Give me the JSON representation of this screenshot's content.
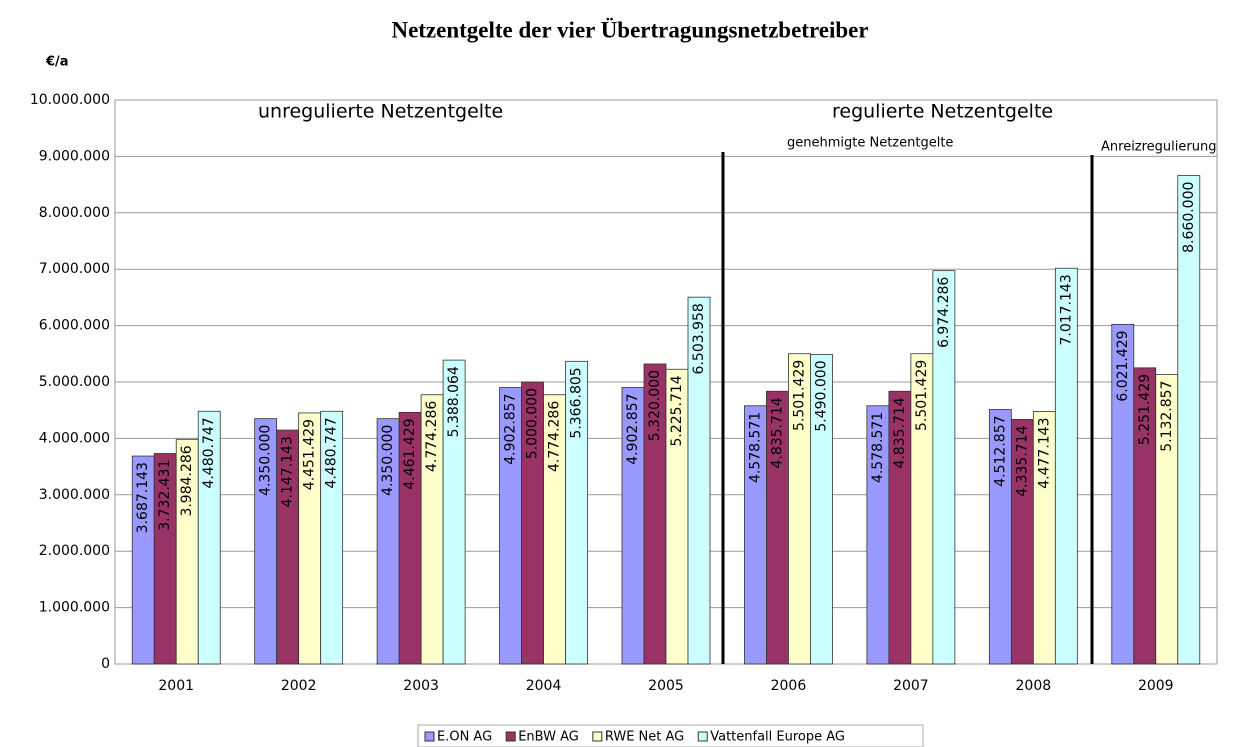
{
  "chart_data": {
    "type": "bar",
    "title": "Netzentgelte der vier Übertragungsnetzbetreiber",
    "y_label": "€/a",
    "annotations": [
      "unregulierte Netzentgelte",
      "regulierte Netzentgelte",
      "genehmigte Netzentgelte",
      "Anreizregulierung"
    ],
    "categories": [
      "2001",
      "2002",
      "2003",
      "2004",
      "2005",
      "2006",
      "2007",
      "2008",
      "2009"
    ],
    "series": [
      {
        "name": "E.ON AG",
        "color": "#9999ff",
        "values": [
          3687143,
          4350000,
          4350000,
          4902857,
          4902857,
          4578571,
          4578571,
          4512857,
          6021429
        ],
        "value_labels": [
          "3.687.143",
          "4.350.000",
          "4.350.000",
          "4.902.857",
          "4.902.857",
          "4.578.571",
          "4.578.571",
          "4.512.857",
          "6.021.429"
        ]
      },
      {
        "name": "EnBW AG",
        "color": "#993366",
        "values": [
          3732431,
          4147143,
          4461429,
          5000000,
          5320000,
          4835714,
          4835714,
          4335714,
          5251429
        ],
        "value_labels": [
          "3.732.431",
          "4.147.143",
          "4.461.429",
          "5.000.000",
          "5.320.000",
          "4.835.714",
          "4.835.714",
          "4.335.714",
          "5.251.429"
        ]
      },
      {
        "name": "RWE Net AG",
        "color": "#ffffcc",
        "values": [
          3984286,
          4451429,
          4774286,
          4774286,
          5225714,
          5501429,
          5501429,
          4477143,
          5132857
        ],
        "value_labels": [
          "3.984.286",
          "4.451.429",
          "4.774.286",
          "4.774.286",
          "5.225.714",
          "5.501.429",
          "5.501.429",
          "4.477.143",
          "5.132.857"
        ]
      },
      {
        "name": "Vattenfall Europe AG",
        "color": "#ccffff",
        "values": [
          4480747,
          4480747,
          5388064,
          5366805,
          6503958,
          5490000,
          6974286,
          7017143,
          8660000
        ],
        "value_labels": [
          "4.480.747",
          "4.480.747",
          "5.388.064",
          "5.366.805",
          "6.503.958",
          "5.490.000",
          "6.974.286",
          "7.017.143",
          "8.660.000"
        ]
      }
    ],
    "ylim": [
      0,
      10000000
    ],
    "yticks": [
      0,
      {
        "value": 1000000,
        "label": "1.000.000"
      },
      {
        "value": 2000000,
        "label": "2.000.000"
      },
      {
        "value": 3000000,
        "label": "3.000.000"
      },
      {
        "value": 4000000,
        "label": "4.000.000"
      },
      {
        "value": 5000000,
        "label": "5.000.000"
      },
      {
        "value": 6000000,
        "label": "6.000.000"
      },
      {
        "value": 7000000,
        "label": "7.000.000"
      },
      {
        "value": 8000000,
        "label": "8.000.000"
      },
      {
        "value": 9000000,
        "label": "9.000.000"
      },
      {
        "value": 10000000,
        "label": "10.000.000"
      }
    ],
    "grid": true,
    "legend": "bottom"
  }
}
